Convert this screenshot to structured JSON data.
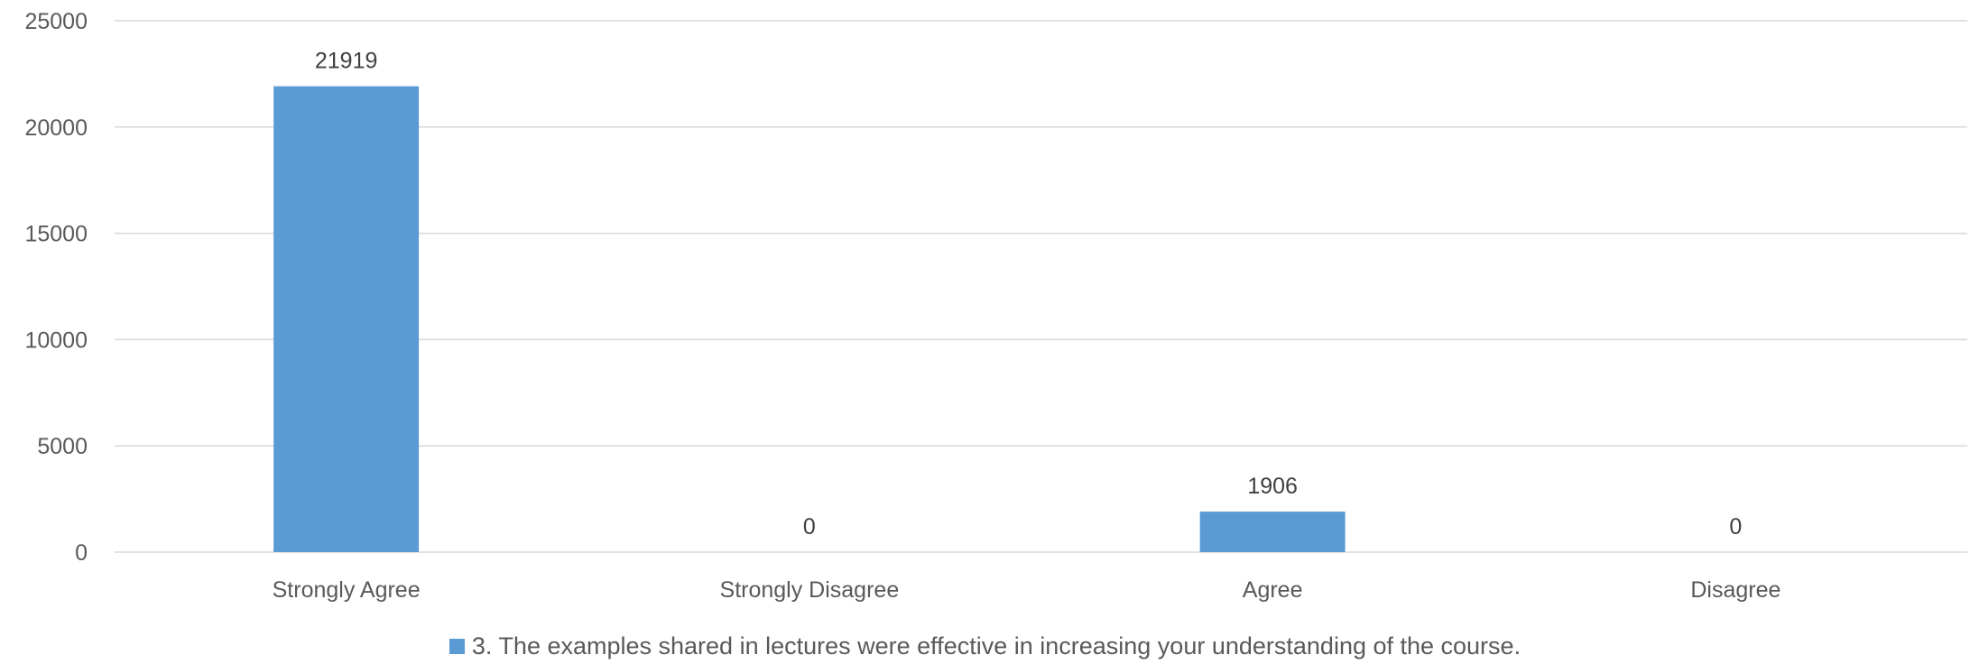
{
  "chart_data": {
    "type": "bar",
    "categories": [
      "Strongly Agree",
      "Strongly Disagree",
      "Agree",
      "Disagree"
    ],
    "series": [
      {
        "name": "3. The examples shared in lectures were effective in increasing your understanding of the course.",
        "values": [
          21919,
          0,
          1906,
          0
        ],
        "color": "#5B9BD5"
      }
    ],
    "ylim": [
      0,
      25000
    ],
    "yticks": [
      "0",
      "5000",
      "10000",
      "15000",
      "20000",
      "25000"
    ],
    "data_labels": [
      "21919",
      "0",
      "1906",
      "0"
    ],
    "grid": true,
    "legend_position": "bottom"
  },
  "colors": {
    "bar": "#5B9BD5",
    "grid": "#D9D9D9",
    "text": "#595959"
  }
}
